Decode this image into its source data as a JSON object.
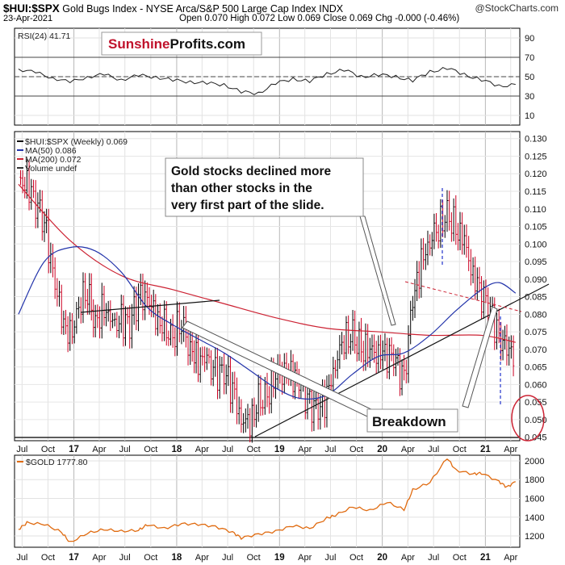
{
  "header": {
    "symbol": "$HUI:$SPX",
    "description": "Gold Bugs Index - NYSE Arca/S&P 500 Large Cap Index  INDX",
    "date": "23-Apr-2021",
    "quote": "Open 0.070  High 0.072  Low 0.069  Close 0.069  Chg -0.000 (-0.46%)",
    "credit": "@StockCharts.com"
  },
  "logo": {
    "text_red": "Sunshine",
    "text_black": "Profits.com"
  },
  "colors": {
    "price_up": "#000000",
    "price_down": "#cc0022",
    "ma50": "#2233aa",
    "ma200": "#cc2233",
    "gold": "#e06b10",
    "rsi": "#222222"
  },
  "chart_data": [
    {
      "type": "line",
      "panel": "rsi",
      "legend": "RSI(24) 41.71",
      "y_ticks": [
        10,
        30,
        50,
        70,
        90
      ],
      "ylim": [
        0,
        100
      ],
      "reference_lines": [
        30,
        50,
        70
      ],
      "x": [
        "2016-06",
        "2016-08",
        "2016-10",
        "2016-12",
        "2017-02",
        "2017-04",
        "2017-06",
        "2017-08",
        "2017-10",
        "2017-12",
        "2018-02",
        "2018-04",
        "2018-06",
        "2018-08",
        "2018-10",
        "2018-12",
        "2019-02",
        "2019-04",
        "2019-06",
        "2019-08",
        "2019-10",
        "2019-12",
        "2020-02",
        "2020-04",
        "2020-06",
        "2020-08",
        "2020-10",
        "2020-12",
        "2021-02",
        "2021-04"
      ],
      "values": [
        58,
        54,
        49,
        44,
        50,
        52,
        47,
        51,
        50,
        46,
        45,
        43,
        42,
        34,
        33,
        43,
        48,
        45,
        53,
        57,
        50,
        52,
        50,
        46,
        55,
        59,
        52,
        47,
        40,
        42
      ]
    },
    {
      "type": "line",
      "panel": "price",
      "legend": [
        "$HUI:$SPX (Weekly) 0.069",
        "MA(50) 0.086",
        "MA(200) 0.072",
        "Volume undef"
      ],
      "y_ticks": [
        0.045,
        0.05,
        0.055,
        0.06,
        0.065,
        0.07,
        0.075,
        0.08,
        0.085,
        0.09,
        0.095,
        0.1,
        0.105,
        0.11,
        0.115,
        0.12,
        0.125,
        0.13
      ],
      "ylim": [
        0.044,
        0.132
      ],
      "series": [
        {
          "name": "$HUI:$SPX (Weekly)",
          "x": [
            "2016-06",
            "2016-07",
            "2016-08",
            "2016-09",
            "2016-10",
            "2016-11",
            "2016-12",
            "2017-01",
            "2017-02",
            "2017-03",
            "2017-04",
            "2017-05",
            "2017-06",
            "2017-07",
            "2017-08",
            "2017-09",
            "2017-10",
            "2017-11",
            "2017-12",
            "2018-01",
            "2018-02",
            "2018-03",
            "2018-04",
            "2018-05",
            "2018-06",
            "2018-07",
            "2018-08",
            "2018-09",
            "2018-10",
            "2018-11",
            "2018-12",
            "2019-01",
            "2019-02",
            "2019-03",
            "2019-04",
            "2019-05",
            "2019-06",
            "2019-07",
            "2019-08",
            "2019-09",
            "2019-10",
            "2019-11",
            "2019-12",
            "2020-01",
            "2020-02",
            "2020-03",
            "2020-04",
            "2020-05",
            "2020-06",
            "2020-07",
            "2020-08",
            "2020-09",
            "2020-10",
            "2020-11",
            "2020-12",
            "2021-01",
            "2021-02",
            "2021-03",
            "2021-04"
          ],
          "values": [
            0.117,
            0.118,
            0.112,
            0.106,
            0.093,
            0.078,
            0.073,
            0.083,
            0.086,
            0.078,
            0.082,
            0.076,
            0.079,
            0.077,
            0.085,
            0.086,
            0.078,
            0.076,
            0.074,
            0.077,
            0.071,
            0.067,
            0.066,
            0.064,
            0.063,
            0.059,
            0.051,
            0.048,
            0.055,
            0.057,
            0.062,
            0.065,
            0.063,
            0.058,
            0.055,
            0.052,
            0.057,
            0.067,
            0.072,
            0.074,
            0.07,
            0.069,
            0.07,
            0.069,
            0.066,
            0.062,
            0.083,
            0.095,
            0.102,
            0.104,
            0.109,
            0.104,
            0.1,
            0.092,
            0.086,
            0.081,
            0.074,
            0.069,
            0.069
          ]
        },
        {
          "name": "MA(50)",
          "x": [
            "2016-06",
            "2016-09",
            "2016-12",
            "2017-03",
            "2017-06",
            "2017-09",
            "2017-12",
            "2018-03",
            "2018-06",
            "2018-09",
            "2018-12",
            "2019-03",
            "2019-06",
            "2019-09",
            "2019-12",
            "2020-03",
            "2020-06",
            "2020-09",
            "2020-12",
            "2021-02",
            "2021-04"
          ],
          "values": [
            0.08,
            0.095,
            0.099,
            0.098,
            0.092,
            0.082,
            0.077,
            0.073,
            0.069,
            0.064,
            0.059,
            0.056,
            0.057,
            0.063,
            0.068,
            0.069,
            0.074,
            0.081,
            0.087,
            0.089,
            0.086
          ]
        },
        {
          "name": "MA(200)",
          "x": [
            "2016-06",
            "2016-12",
            "2017-06",
            "2017-12",
            "2018-06",
            "2018-12",
            "2019-06",
            "2019-12",
            "2020-06",
            "2020-12",
            "2021-04"
          ],
          "values": [
            0.117,
            0.101,
            0.091,
            0.087,
            0.083,
            0.079,
            0.076,
            0.075,
            0.074,
            0.074,
            0.072
          ]
        }
      ],
      "annotations": [
        "Gold stocks declined more than other stocks in the very first part of the slide.",
        "Breakdown"
      ]
    },
    {
      "type": "line",
      "panel": "gold",
      "legend": "$GOLD 1777.80",
      "y_ticks": [
        1200,
        1400,
        1600,
        1800,
        2000
      ],
      "ylim": [
        1080,
        2060
      ],
      "series": [
        {
          "name": "$GOLD",
          "x": [
            "2016-06",
            "2016-07",
            "2016-09",
            "2016-11",
            "2016-12",
            "2017-02",
            "2017-04",
            "2017-06",
            "2017-08",
            "2017-09",
            "2017-11",
            "2018-01",
            "2018-03",
            "2018-05",
            "2018-07",
            "2018-08",
            "2018-10",
            "2018-12",
            "2019-02",
            "2019-04",
            "2019-06",
            "2019-07",
            "2019-09",
            "2019-11",
            "2020-01",
            "2020-03",
            "2020-04",
            "2020-06",
            "2020-08",
            "2020-09",
            "2020-11",
            "2020-12",
            "2021-02",
            "2021-03",
            "2021-04"
          ],
          "values": [
            1270,
            1340,
            1325,
            1240,
            1130,
            1230,
            1270,
            1250,
            1260,
            1320,
            1280,
            1330,
            1325,
            1300,
            1240,
            1180,
            1220,
            1250,
            1310,
            1280,
            1390,
            1420,
            1510,
            1470,
            1560,
            1480,
            1690,
            1770,
            2030,
            1900,
            1860,
            1870,
            1780,
            1720,
            1778
          ]
        }
      ]
    }
  ],
  "x_axis": {
    "labels": [
      "Jul",
      "Oct",
      "17",
      "Apr",
      "Jul",
      "Oct",
      "18",
      "Apr",
      "Jul",
      "Oct",
      "19",
      "Apr",
      "Jul",
      "Oct",
      "20",
      "Apr",
      "Jul",
      "Oct",
      "21",
      "Apr"
    ],
    "year_labels": [
      "17",
      "18",
      "19",
      "20",
      "21"
    ]
  }
}
